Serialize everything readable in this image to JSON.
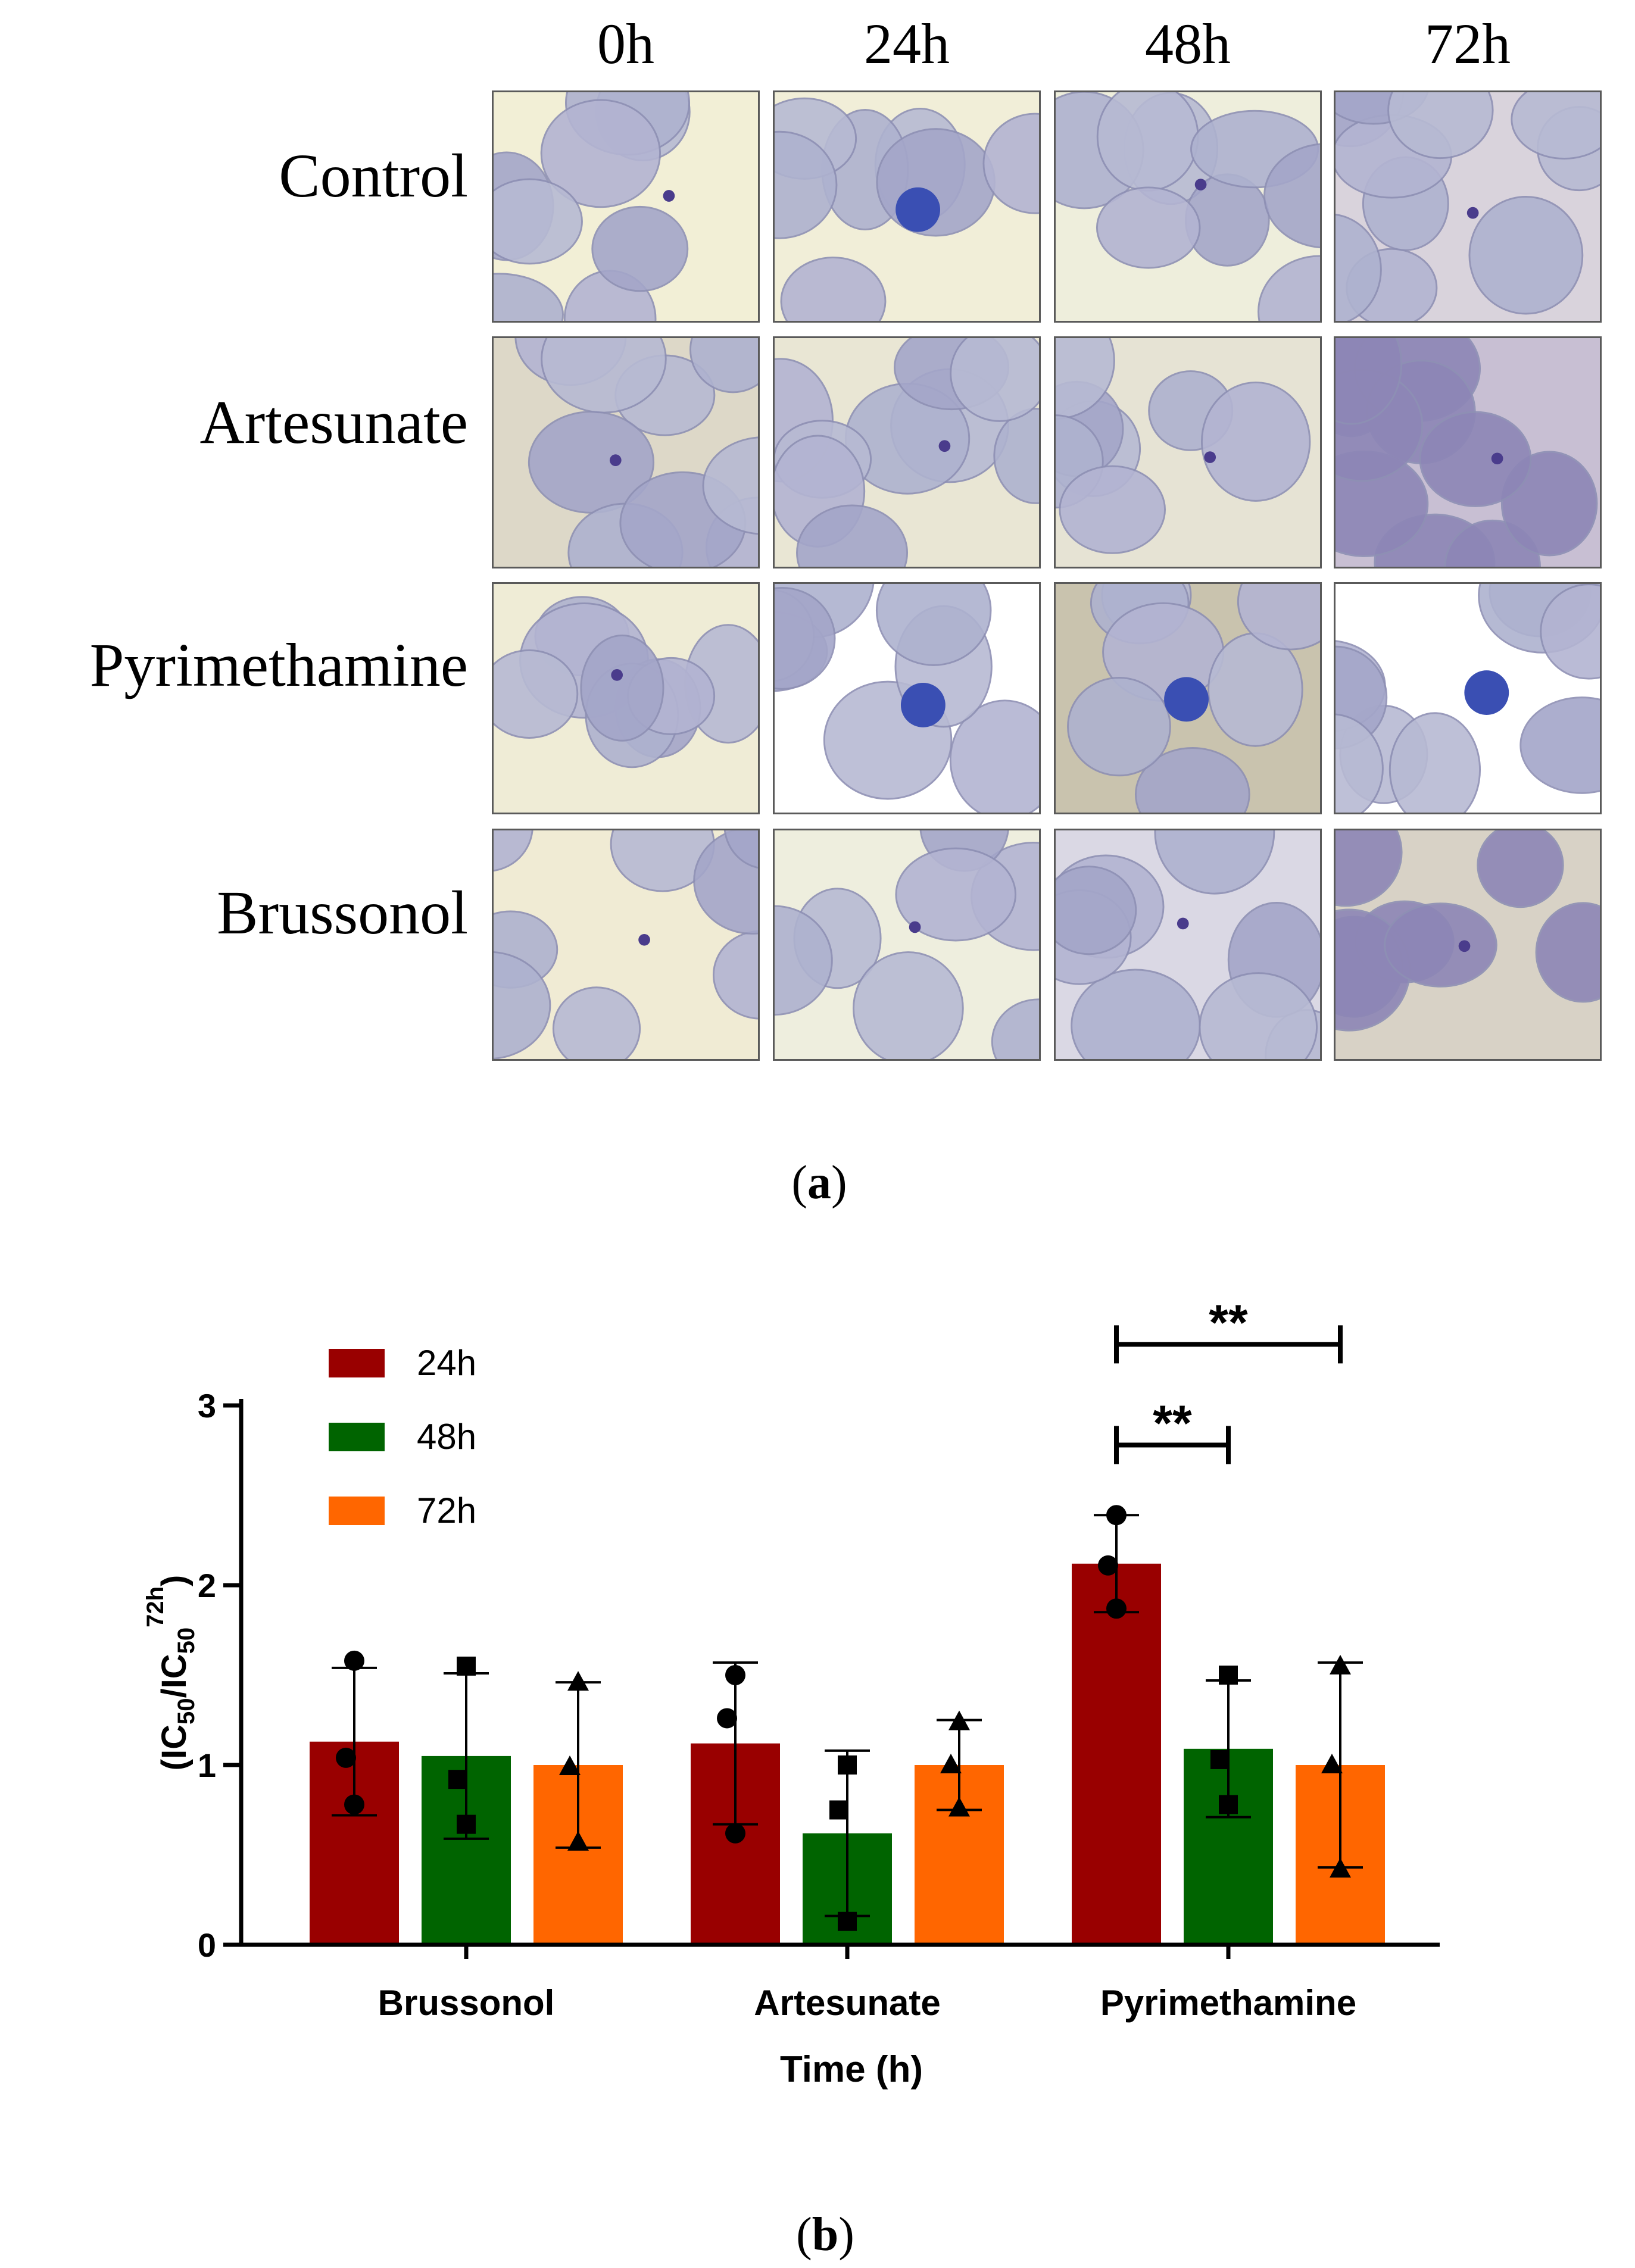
{
  "panel_a": {
    "columns": [
      "0h",
      "24h",
      "48h",
      "72h"
    ],
    "rows": [
      "Control",
      "Artesunate",
      "Pyrimethamine",
      "Brussonol"
    ],
    "caption": "(a)",
    "caption_letter": "a"
  },
  "panel_b": {
    "caption_letter": "b"
  },
  "colors": {
    "h24": "#990000",
    "h48": "#006400",
    "h72": "#ff6600"
  },
  "chart_data": {
    "type": "bar",
    "categories": [
      "Brussonol",
      "Artesunate",
      "Pyrimethamine"
    ],
    "xlabel": "Time (h)",
    "ylabel": "(IC50/IC50 72h)",
    "ylabel_parts": {
      "open": "(IC",
      "sub1": "50",
      "slash": "/IC",
      "sub2": "50",
      "sup": "72h",
      "close": ")"
    },
    "yticks": [
      "0",
      "1",
      "2",
      "3"
    ],
    "ylim": [
      0,
      3
    ],
    "legend_position": "top-left",
    "series": [
      {
        "name": "24h",
        "marker": "circle",
        "values": [
          1.13,
          1.12,
          2.12
        ],
        "errors": [
          0.41,
          0.45,
          0.27
        ],
        "points": [
          [
            1.58,
            1.04,
            0.78
          ],
          [
            1.5,
            1.26,
            0.62
          ],
          [
            2.39,
            2.11,
            1.87
          ]
        ]
      },
      {
        "name": "48h",
        "marker": "square",
        "values": [
          1.05,
          0.62,
          1.09
        ],
        "errors": [
          0.46,
          0.46,
          0.38
        ],
        "points": [
          [
            1.55,
            0.92,
            0.67
          ],
          [
            1.0,
            0.75,
            0.13
          ],
          [
            1.5,
            1.03,
            0.78
          ]
        ]
      },
      {
        "name": "72h",
        "marker": "triangle",
        "values": [
          1.0,
          1.0,
          1.0
        ],
        "errors": [
          0.46,
          0.25,
          0.57
        ],
        "points": [
          [
            1.46,
            0.99,
            0.57
          ],
          [
            1.24,
            1.0,
            0.76
          ],
          [
            1.55,
            1.0,
            0.42
          ]
        ]
      }
    ],
    "annotations": [
      {
        "label": "**",
        "group": 2,
        "from_series": 0,
        "to_series": 1,
        "y": 2.78
      },
      {
        "label": "**",
        "group": 2,
        "from_series": 0,
        "to_series": 2,
        "y": 3.34
      }
    ]
  }
}
